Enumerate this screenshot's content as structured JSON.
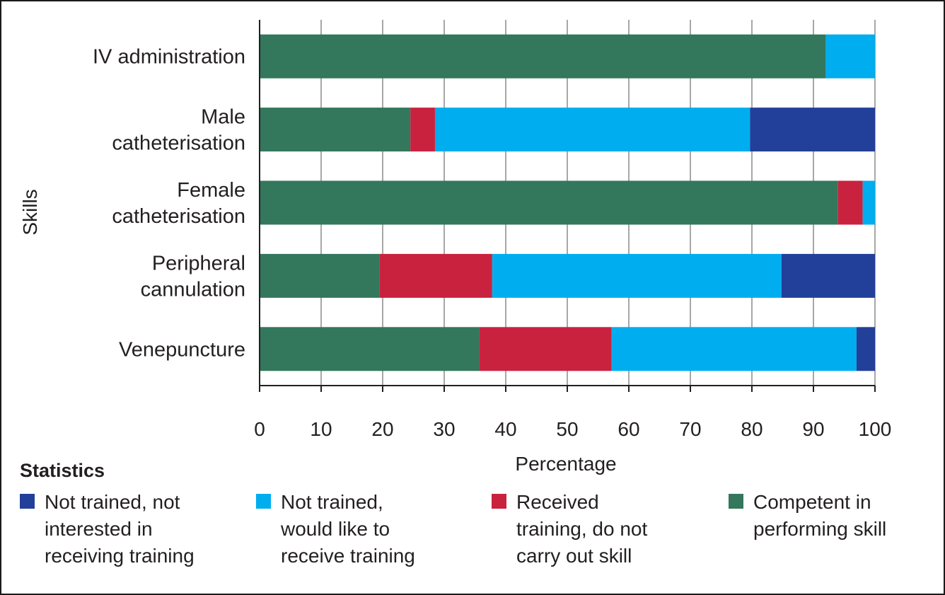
{
  "chart_data": {
    "type": "bar",
    "orientation": "horizontal",
    "stacked": true,
    "title": "",
    "xlabel": "Percentage",
    "ylabel": "Skills",
    "xlim": [
      0,
      100
    ],
    "xticks": [
      "0",
      "10",
      "20",
      "30",
      "40",
      "50",
      "60",
      "70",
      "80",
      "90",
      "100"
    ],
    "grid": "vertical",
    "categories": [
      [
        "IV administration"
      ],
      [
        "Male",
        "catheterisation"
      ],
      [
        "Female",
        "catheterisation"
      ],
      [
        "Peripheral",
        "cannulation"
      ],
      [
        "Venepuncture"
      ]
    ],
    "series": [
      {
        "key": "competent",
        "color": "#33775c",
        "values": [
          92,
          24.5,
          94,
          19.5,
          35.7
        ]
      },
      {
        "key": "received",
        "color": "#c8223f",
        "values": [
          0,
          4,
          4,
          18.3,
          21.5
        ]
      },
      {
        "key": "would_like",
        "color": "#00adef",
        "values": [
          8,
          51.2,
          2,
          47,
          39.8
        ]
      },
      {
        "key": "not_interested",
        "color": "#223f99",
        "values": [
          0,
          20.3,
          0,
          15.2,
          3
        ]
      }
    ],
    "legend": {
      "title": "Statistics",
      "placement": "bottom",
      "items": [
        {
          "lines": [
            "Not trained, not",
            "interested in",
            "receiving training"
          ],
          "color": "#223f99"
        },
        {
          "lines": [
            "Not trained,",
            "would like to",
            "receive training"
          ],
          "color": "#00adef"
        },
        {
          "lines": [
            "Received",
            "training, do not",
            "carry out skill"
          ],
          "color": "#c8223f"
        },
        {
          "lines": [
            "Competent in",
            "performing skill"
          ],
          "color": "#33775c"
        }
      ]
    }
  }
}
